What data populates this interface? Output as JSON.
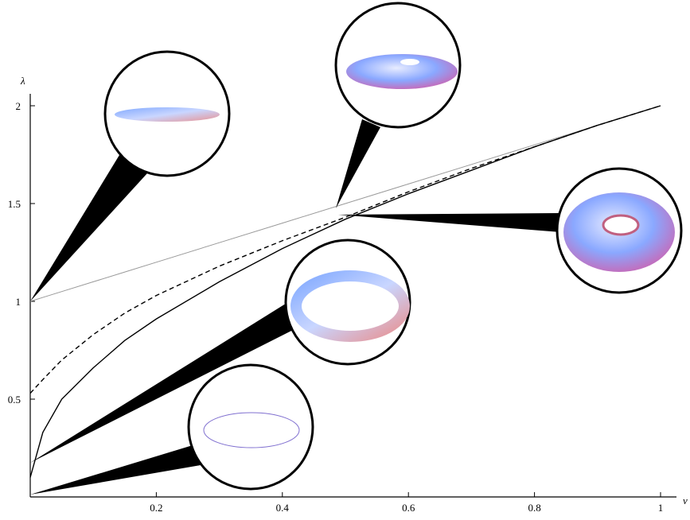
{
  "chart_data": {
    "type": "line",
    "x_label": "ν",
    "y_label": "λ",
    "xlim": [
      0,
      1
    ],
    "ylim": [
      0,
      2
    ],
    "xticks": [
      0.2,
      0.4,
      0.6,
      0.8,
      1
    ],
    "yticks": [
      0.5,
      1,
      1.5,
      2
    ],
    "x": [
      0,
      0.02,
      0.05,
      0.1,
      0.15,
      0.2,
      0.3,
      0.4,
      0.5,
      0.6,
      0.7,
      0.8,
      0.9,
      1
    ],
    "series": [
      {
        "color": "#999999",
        "style": "solid",
        "values": [
          1,
          1.02,
          1.05,
          1.1,
          1.15,
          1.2,
          1.3,
          1.4,
          1.5,
          1.6,
          1.7,
          1.8,
          1.9,
          2
        ]
      },
      {
        "color": "#000000",
        "style": "dashed",
        "values": [
          0.53,
          0.6,
          0.7,
          0.83,
          0.94,
          1.03,
          1.18,
          1.31,
          1.43,
          1.56,
          1.68,
          1.79,
          1.9,
          2
        ]
      },
      {
        "color": "#000000",
        "style": "solid",
        "values": [
          0.1,
          0.33,
          0.5,
          0.66,
          0.8,
          0.91,
          1.1,
          1.27,
          1.42,
          1.55,
          1.67,
          1.79,
          1.9,
          2
        ]
      }
    ]
  }
}
